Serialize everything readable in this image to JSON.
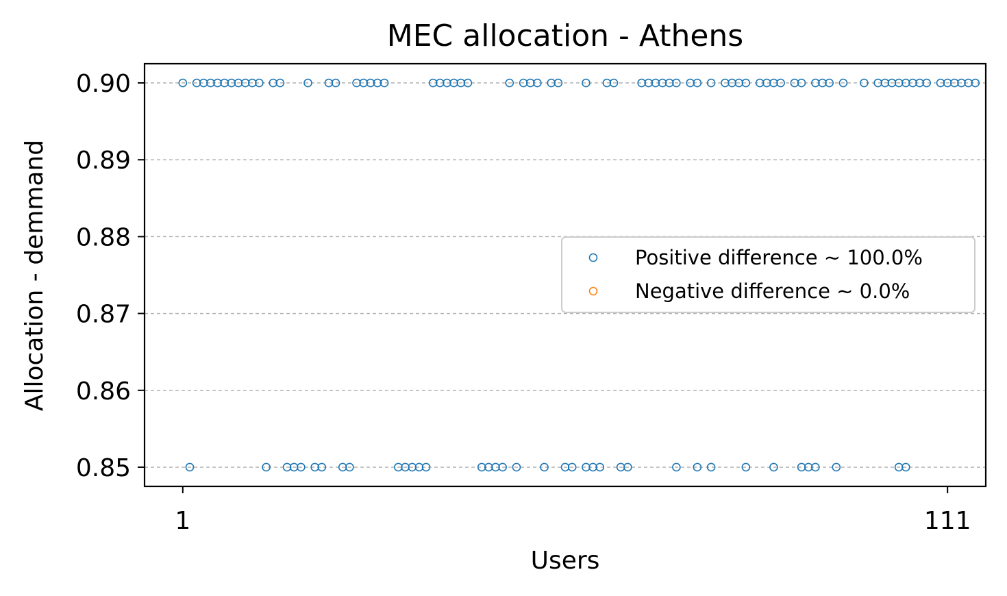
{
  "chart_data": {
    "type": "scatter",
    "title": "MEC allocation - Athens",
    "xlabel": "Users",
    "ylabel": "Allocation - demmand",
    "xlim": [
      -4.5,
      116.5
    ],
    "ylim": [
      0.8475,
      0.9025
    ],
    "xticks": [
      1,
      111
    ],
    "xtick_labels": [
      "1",
      "111"
    ],
    "yticks": [
      0.85,
      0.86,
      0.87,
      0.88,
      0.89,
      0.9
    ],
    "ytick_labels": [
      "0.85",
      "0.86",
      "0.87",
      "0.88",
      "0.89",
      "0.90"
    ],
    "grid": "horizontal dashed",
    "legend_position": "center-right",
    "series": [
      {
        "name": "Positive difference ~ 100.0%",
        "color": "#1f77b4",
        "marker": "open-circle",
        "x": [
          1,
          3,
          4,
          5,
          6,
          7,
          8,
          9,
          10,
          11,
          12,
          14,
          15,
          19,
          22,
          23,
          26,
          27,
          28,
          29,
          30,
          37,
          38,
          39,
          40,
          41,
          42,
          48,
          50,
          51,
          52,
          54,
          55,
          59,
          62,
          63,
          67,
          68,
          69,
          70,
          71,
          72,
          74,
          75,
          77,
          79,
          80,
          81,
          82,
          84,
          85,
          86,
          87,
          89,
          90,
          92,
          93,
          94,
          96,
          99,
          101,
          102,
          103,
          104,
          105,
          106,
          107,
          108,
          110,
          111,
          112,
          113,
          114,
          115
        ],
        "y": [
          0.9,
          0.9,
          0.9,
          0.9,
          0.9,
          0.9,
          0.9,
          0.9,
          0.9,
          0.9,
          0.9,
          0.9,
          0.9,
          0.9,
          0.9,
          0.9,
          0.9,
          0.9,
          0.9,
          0.9,
          0.9,
          0.9,
          0.9,
          0.9,
          0.9,
          0.9,
          0.9,
          0.9,
          0.9,
          0.9,
          0.9,
          0.9,
          0.9,
          0.9,
          0.9,
          0.9,
          0.9,
          0.9,
          0.9,
          0.9,
          0.9,
          0.9,
          0.9,
          0.9,
          0.9,
          0.9,
          0.9,
          0.9,
          0.9,
          0.9,
          0.9,
          0.9,
          0.9,
          0.9,
          0.9,
          0.9,
          0.9,
          0.9,
          0.9,
          0.9,
          0.9,
          0.9,
          0.9,
          0.9,
          0.9,
          0.9,
          0.9,
          0.9,
          0.9,
          0.9,
          0.9,
          0.9,
          0.9,
          0.9
        ]
      },
      {
        "name": "Negative difference ~ 0.0%",
        "color": "#ff7f0e",
        "marker": "open-circle",
        "x": [],
        "y": []
      }
    ],
    "extra_points_lower": {
      "x": [
        2,
        13,
        16,
        17,
        18,
        20,
        21,
        24,
        25,
        32,
        33,
        34,
        35,
        36,
        44,
        45,
        46,
        47,
        49,
        53,
        56,
        57,
        59,
        60,
        61,
        64,
        65,
        72,
        75,
        77,
        82,
        86,
        90,
        91,
        92,
        95,
        104,
        105
      ],
      "y": [
        0.85,
        0.85,
        0.85,
        0.85,
        0.85,
        0.85,
        0.85,
        0.85,
        0.85,
        0.85,
        0.85,
        0.85,
        0.85,
        0.85,
        0.85,
        0.85,
        0.85,
        0.85,
        0.85,
        0.85,
        0.85,
        0.85,
        0.85,
        0.85,
        0.85,
        0.85,
        0.85,
        0.85,
        0.85,
        0.85,
        0.85,
        0.85,
        0.85,
        0.85,
        0.85,
        0.85,
        0.85,
        0.85
      ]
    }
  }
}
